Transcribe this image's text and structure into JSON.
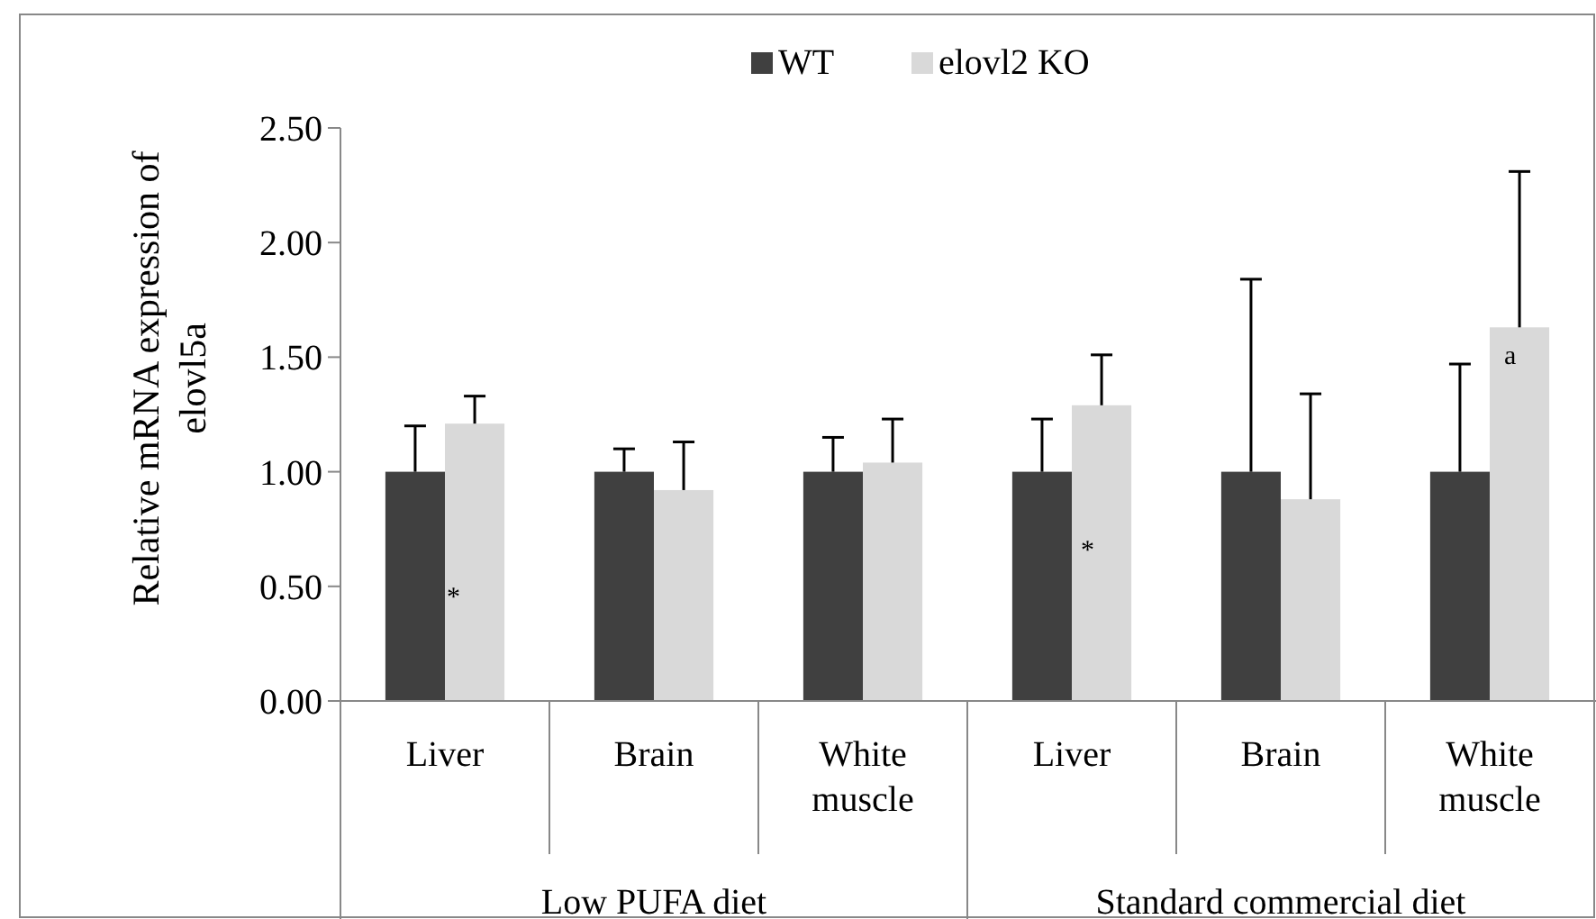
{
  "chart_data": {
    "type": "bar",
    "ylabel": "Relative mRNA expression of elovl5a",
    "categories": [
      "Liver",
      "Brain",
      "White muscle",
      "Liver",
      "Brain",
      "White muscle"
    ],
    "series": [
      {
        "name": "WT",
        "color": "#404040",
        "values": [
          1.0,
          1.0,
          1.0,
          1.0,
          1.0,
          1.0
        ],
        "errors": [
          [
            1.0,
            1.2
          ],
          [
            1.0,
            1.1
          ],
          [
            1.0,
            1.15
          ],
          [
            1.0,
            1.23
          ],
          [
            1.0,
            1.84
          ],
          [
            1.0,
            1.47
          ]
        ]
      },
      {
        "name": "elovl2 KO",
        "color": "#d9d9d9",
        "values": [
          1.21,
          0.92,
          1.04,
          1.29,
          0.88,
          1.63
        ],
        "errors": [
          [
            1.21,
            1.33
          ],
          [
            0.92,
            1.13
          ],
          [
            1.04,
            1.23
          ],
          [
            1.29,
            1.51
          ],
          [
            0.88,
            1.34
          ],
          [
            1.63,
            2.31
          ]
        ]
      }
    ],
    "ylim": [
      0,
      2.5
    ],
    "yticks": [
      {
        "value": 0,
        "label": "0.00"
      },
      {
        "value": 0.5,
        "label": "0.50"
      },
      {
        "value": 1,
        "label": "1.00"
      },
      {
        "value": 1.5,
        "label": "1.50"
      },
      {
        "value": 2,
        "label": "2.00"
      },
      {
        "value": 2.5,
        "label": "2.50"
      }
    ],
    "legend": "top",
    "grid": false,
    "annotations": [
      "*",
      "*",
      "a",
      "Low PUFA diet",
      "Standard commercial diet"
    ]
  }
}
